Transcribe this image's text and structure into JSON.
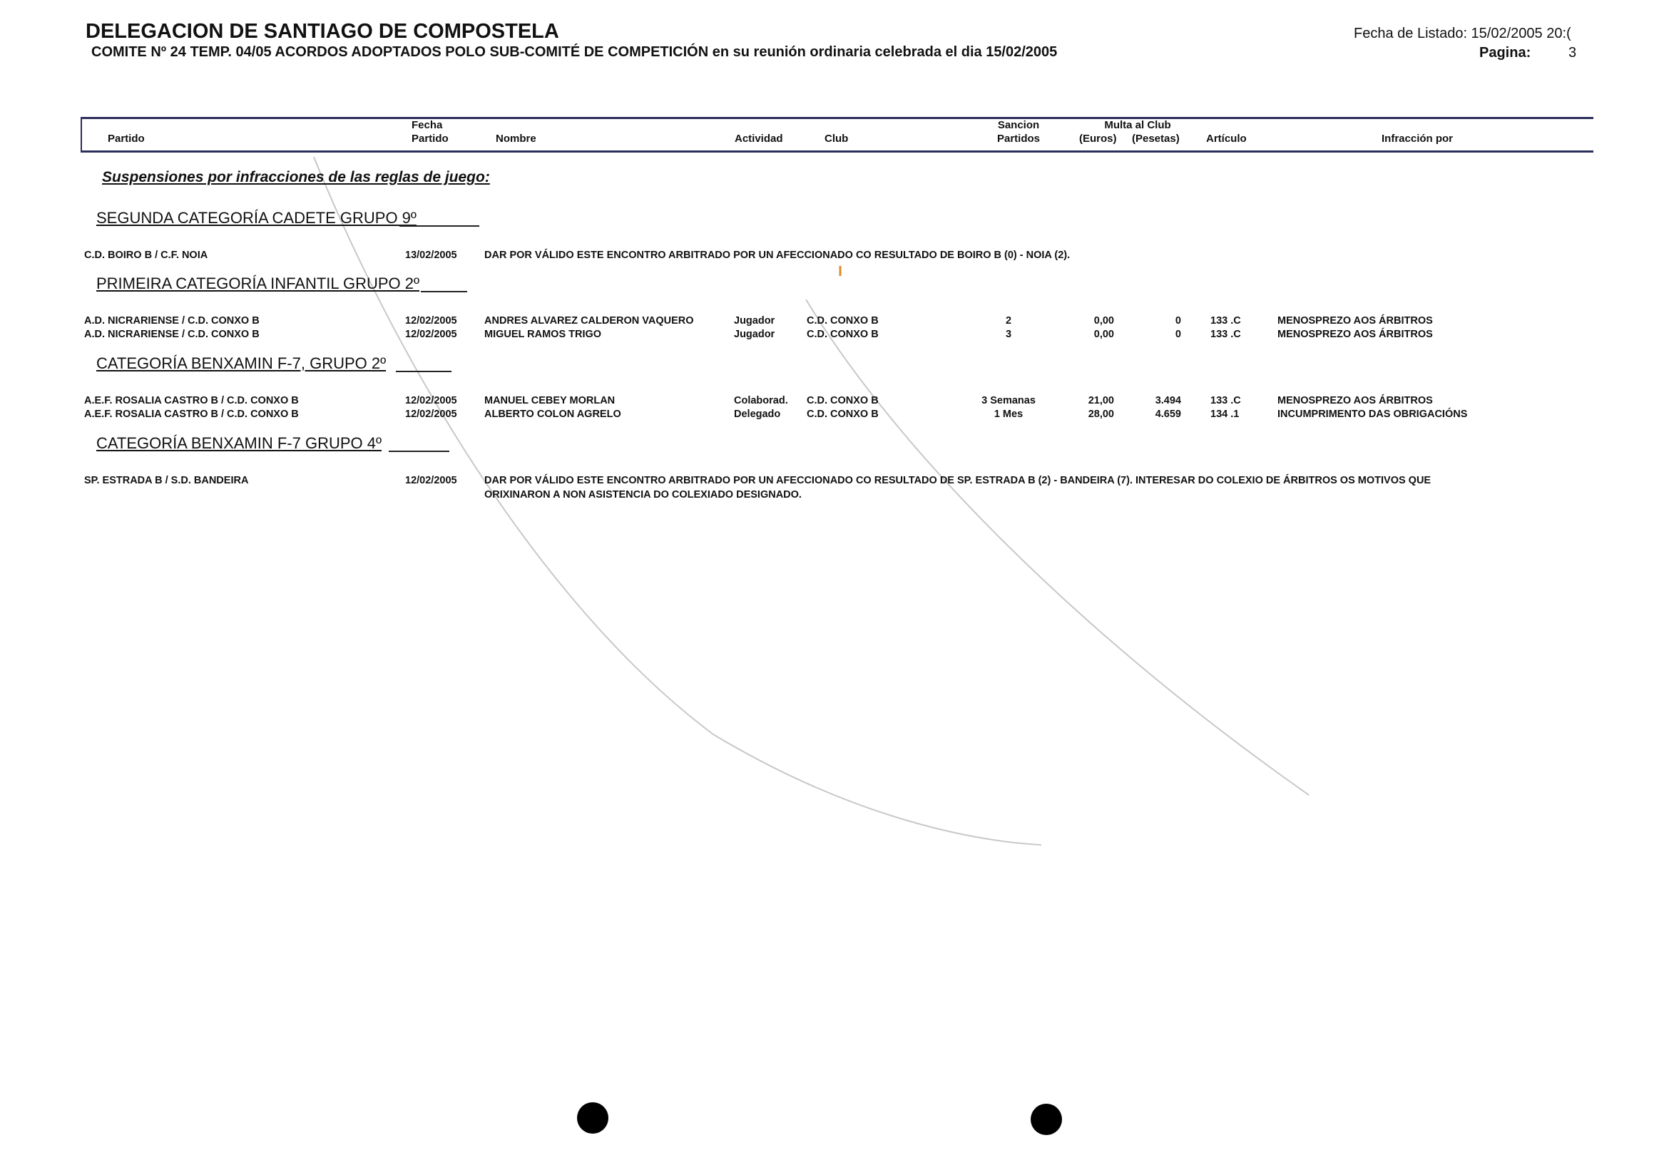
{
  "header": {
    "title": "DELEGACION DE SANTIAGO DE COMPOSTELA",
    "subtitle": "COMITE Nº 24 TEMP. 04/05 ACORDOS ADOPTADOS POLO SUB-COMITÉ DE COMPETICIÓN en su reunión ordinaria celebrada el dia 15/02/2005",
    "fecha_listado": "Fecha de Listado: 15/02/2005 20:(",
    "pagina_label": "Pagina:",
    "pagina_value": "3"
  },
  "columns": {
    "partido": "Partido",
    "fecha_1": "Fecha",
    "fecha_2": "Partido",
    "nombre": "Nombre",
    "actividad": "Actividad",
    "club": "Club",
    "sancion_1": "Sancion",
    "sancion_2": "Partidos",
    "multa": "Multa al Club",
    "euros": "(Euros)",
    "pesetas": "(Pesetas)",
    "articulo": "Artículo",
    "infraccion": "Infracción por"
  },
  "section_title": "Suspensiones por infracciones de las reglas de juego:",
  "categories": [
    {
      "name": "SEGUNDA CATEGORÍA CADETE GRUPO 9º",
      "rows": [
        {
          "partido": "C.D. BOIRO B / C.F. NOIA",
          "fecha": "13/02/2005",
          "nota": "DAR POR VÁLIDO ESTE ENCONTRO ARBITRADO POR UN AFECCIONADO CO RESULTADO DE BOIRO B (0) - NOIA (2)."
        }
      ]
    },
    {
      "name": "PRIMEIRA CATEGORÍA INFANTIL GRUPO 2º",
      "rows": [
        {
          "partido": "A.D. NICRARIENSE / C.D. CONXO B",
          "fecha": "12/02/2005",
          "nombre": "ANDRES ALVAREZ CALDERON VAQUERO",
          "actividad": "Jugador",
          "club": "C.D. CONXO B",
          "sancion": "2",
          "euros": "0,00",
          "pesetas": "0",
          "articulo": "133 .C",
          "infraccion": "MENOSPREZO AOS ÁRBITROS"
        },
        {
          "partido": "A.D. NICRARIENSE / C.D. CONXO B",
          "fecha": "12/02/2005",
          "nombre": "MIGUEL RAMOS TRIGO",
          "actividad": "Jugador",
          "club": "C.D. CONXO B",
          "sancion": "3",
          "euros": "0,00",
          "pesetas": "0",
          "articulo": "133 .C",
          "infraccion": "MENOSPREZO AOS ÁRBITROS"
        }
      ]
    },
    {
      "name": "CATEGORÍA BENXAMIN F-7, GRUPO 2º",
      "rows": [
        {
          "partido": "A.E.F. ROSALIA CASTRO  B / C.D. CONXO B",
          "fecha": "12/02/2005",
          "nombre": "MANUEL CEBEY MORLAN",
          "actividad": "Colaborad.",
          "club": "C.D. CONXO B",
          "sancion": "3 Semanas",
          "euros": "21,00",
          "pesetas": "3.494",
          "articulo": "133 .C",
          "infraccion": "MENOSPREZO AOS ÁRBITROS"
        },
        {
          "partido": "A.E.F. ROSALIA CASTRO  B / C.D. CONXO B",
          "fecha": "12/02/2005",
          "nombre": "ALBERTO COLON AGRELO",
          "actividad": "Delegado",
          "club": "C.D. CONXO B",
          "sancion": "1 Mes",
          "euros": "28,00",
          "pesetas": "4.659",
          "articulo": "134 .1",
          "infraccion": "INCUMPRIMENTO DAS OBRIGACIÓNS"
        }
      ]
    },
    {
      "name": "CATEGORÍA BENXAMIN F-7 GRUPO 4º",
      "rows": [
        {
          "partido": "SP. ESTRADA B / S.D. BANDEIRA",
          "fecha": "12/02/2005",
          "nota": "DAR POR VÁLIDO ESTE ENCONTRO ARBITRADO POR UN AFECCIONADO CO RESULTADO DE SP. ESTRADA B (2) - BANDEIRA (7). INTERESAR DO COLEXIO DE ÁRBITROS OS MOTIVOS QUE",
          "nota_2": "ORIXINARON A NON ASISTENCIA DO COLEXIADO DESIGNADO."
        }
      ]
    }
  ]
}
